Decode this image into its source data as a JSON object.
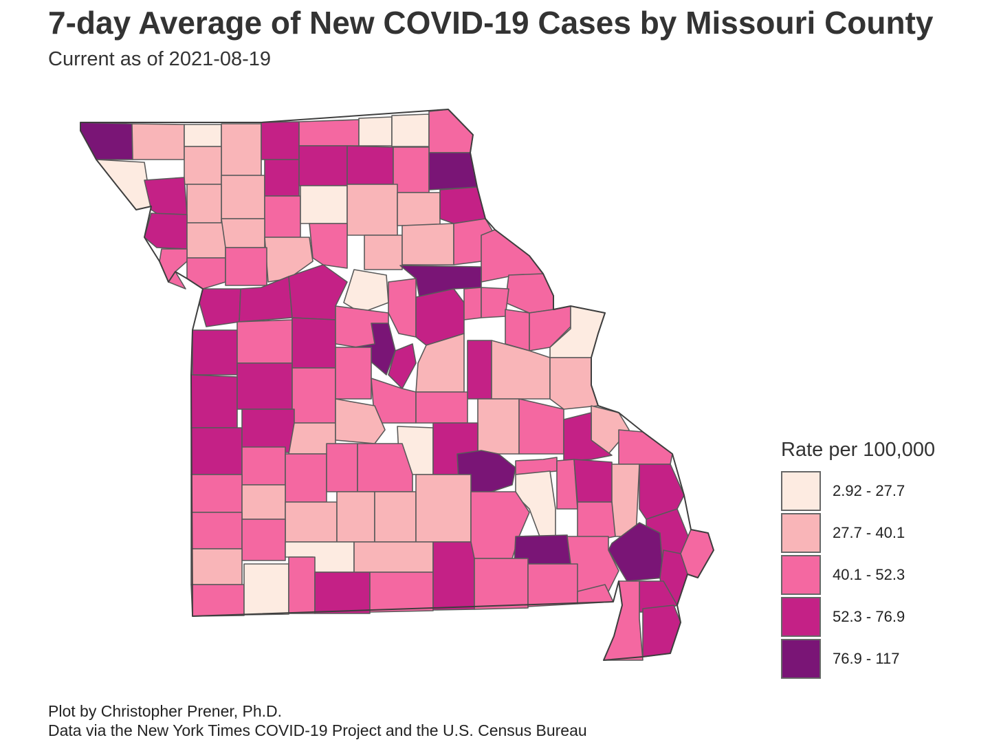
{
  "title": "7-day Average of New COVID-19 Cases by Missouri County",
  "subtitle": "Current as of 2021-08-19",
  "caption": [
    "Plot by Christopher Prener, Ph.D.",
    "Data via the New York Times COVID-19 Project and the U.S. Census Bureau"
  ],
  "legend": {
    "title": "Rate per 100,000",
    "classes": [
      {
        "label": "2.92 - 27.7",
        "color": "#fdebe1"
      },
      {
        "label": "27.7 - 40.1",
        "color": "#f9b5b8"
      },
      {
        "label": "40.1 - 52.3",
        "color": "#f468a1"
      },
      {
        "label": "52.3 - 76.9",
        "color": "#c42186"
      },
      {
        "label": "76.9 - 117",
        "color": "#7a1576"
      }
    ]
  },
  "map": {
    "state": "Missouri",
    "boundary_color": "#5a5a5a"
  }
}
